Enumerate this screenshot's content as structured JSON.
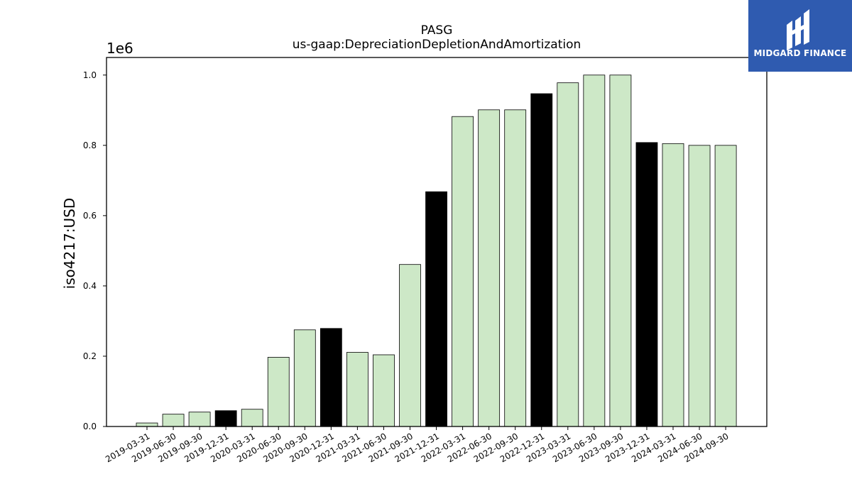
{
  "brand": {
    "name": "MIDGARD FINANCE",
    "color": "#2f5bb0"
  },
  "chart_data": {
    "type": "bar",
    "title": "PASG",
    "subtitle": "us-gaap:DepreciationDepletionAndAmortization",
    "xlabel": "",
    "ylabel": "iso4217:USD",
    "y_multiplier": "1e6",
    "ylim": [
      0,
      1.05
    ],
    "yticks": [
      "0.0",
      "0.2",
      "0.4",
      "0.6",
      "0.8",
      "1.0"
    ],
    "grid": false,
    "colors": {
      "quarter": "#cde8c7",
      "year_end": "#000000",
      "edge": "#000000"
    },
    "categories": [
      "2019-03-31",
      "2019-06-30",
      "2019-09-30",
      "2019-12-31",
      "2020-03-31",
      "2020-06-30",
      "2020-09-30",
      "2020-12-31",
      "2021-03-31",
      "2021-06-30",
      "2021-09-30",
      "2021-12-31",
      "2022-03-31",
      "2022-06-30",
      "2022-09-30",
      "2022-12-31",
      "2023-03-31",
      "2023-06-30",
      "2023-09-30",
      "2023-12-31",
      "2024-03-31",
      "2024-06-30",
      "2024-09-30"
    ],
    "values": [
      0.01,
      0.035,
      0.041,
      0.045,
      0.049,
      0.197,
      0.275,
      0.279,
      0.211,
      0.204,
      0.461,
      0.668,
      0.882,
      0.901,
      0.901,
      0.947,
      0.978,
      1.0,
      1.0,
      0.808,
      0.805,
      0.8,
      0.8
    ],
    "highlight": [
      false,
      false,
      false,
      true,
      false,
      false,
      false,
      true,
      false,
      false,
      false,
      true,
      false,
      false,
      false,
      true,
      false,
      false,
      false,
      true,
      false,
      false,
      false
    ]
  }
}
